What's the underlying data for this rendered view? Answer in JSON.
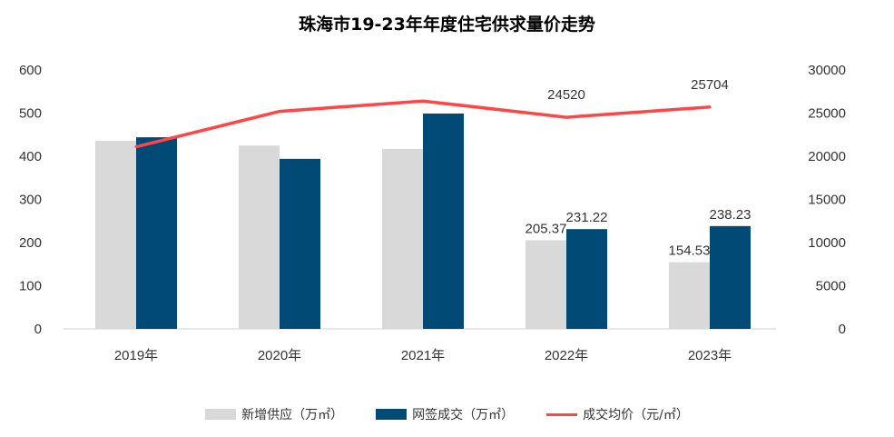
{
  "chart_data": {
    "type": "bar+line",
    "title": "珠海市19-23年年度住宅供求量价走势",
    "categories": [
      "2019年",
      "2020年",
      "2021年",
      "2022年",
      "2023年"
    ],
    "series": [
      {
        "name": "新增供应（万㎡）",
        "type": "bar",
        "axis": "left",
        "color": "#d9d9d9",
        "values": [
          436,
          425,
          417,
          205.37,
          154.53
        ],
        "labels": [
          "",
          "",
          "",
          "205.37",
          "154.53"
        ]
      },
      {
        "name": "网签成交（万㎡）",
        "type": "bar",
        "axis": "left",
        "color": "#004a75",
        "values": [
          444,
          394,
          499,
          231.22,
          238.23
        ],
        "labels": [
          "",
          "",
          "",
          "231.22",
          "238.23"
        ]
      },
      {
        "name": "成交均价（元/㎡）",
        "type": "line",
        "axis": "right",
        "color": "#ff4545",
        "values": [
          21100,
          25200,
          26400,
          24520,
          25704
        ],
        "labels": [
          "",
          "",
          "",
          "24520",
          "25704"
        ]
      }
    ],
    "left_axis": {
      "ylim": [
        0,
        600
      ],
      "ticks": [
        "0",
        "100",
        "200",
        "300",
        "400",
        "500",
        "600"
      ]
    },
    "right_axis": {
      "ylim": [
        0,
        30000
      ],
      "ticks": [
        "0",
        "5000",
        "10000",
        "15000",
        "20000",
        "25000",
        "30000"
      ]
    },
    "grid": false,
    "legend": "bottom"
  }
}
